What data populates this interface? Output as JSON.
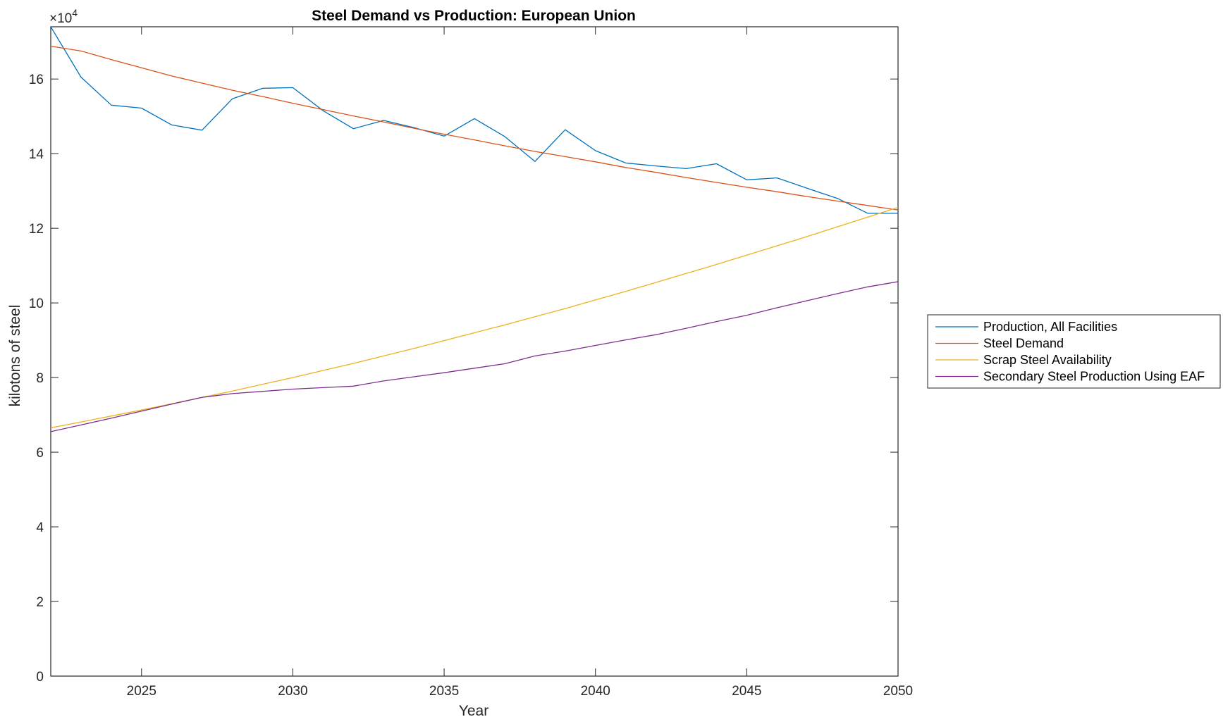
{
  "chart_data": {
    "type": "line",
    "title": "Steel Demand vs Production: European Union",
    "xlabel": "Year",
    "ylabel": "kilotons of steel",
    "y_exponent_label": "×10",
    "y_exponent_power": "4",
    "xlim": [
      2022,
      2050
    ],
    "ylim": [
      0,
      174000
    ],
    "xticks": [
      2025,
      2030,
      2035,
      2040,
      2045,
      2050
    ],
    "yticks": [
      0,
      20000,
      40000,
      60000,
      80000,
      100000,
      120000,
      140000,
      160000
    ],
    "ytick_labels": [
      "0",
      "2",
      "4",
      "6",
      "8",
      "10",
      "12",
      "14",
      "16"
    ],
    "grid": false,
    "legend_position": "outside-right",
    "x": [
      2022,
      2023,
      2024,
      2025,
      2026,
      2027,
      2028,
      2029,
      2030,
      2031,
      2032,
      2033,
      2034,
      2035,
      2036,
      2037,
      2038,
      2039,
      2040,
      2041,
      2042,
      2043,
      2044,
      2045,
      2046,
      2047,
      2048,
      2049,
      2050
    ],
    "series": [
      {
        "name": "Production, All Facilities",
        "color": "#0072BD",
        "values": [
          174000,
          160500,
          153000,
          152200,
          147700,
          146300,
          154700,
          157500,
          157700,
          151500,
          146700,
          148900,
          147000,
          144700,
          149400,
          144600,
          137900,
          146400,
          140800,
          137500,
          136700,
          136000,
          137300,
          133000,
          133500,
          130700,
          128000,
          124000,
          124000
        ]
      },
      {
        "name": "Steel Demand",
        "color": "#D95319",
        "values": [
          168800,
          167500,
          165200,
          163000,
          160800,
          158900,
          157000,
          155300,
          153500,
          151800,
          150100,
          148500,
          146800,
          145200,
          143700,
          142100,
          140600,
          139200,
          137800,
          136300,
          135000,
          133600,
          132300,
          131000,
          129800,
          128500,
          127300,
          126100,
          124900
        ]
      },
      {
        "name": "Scrap Steel Availability",
        "color": "#EDB120",
        "values": [
          66500,
          68100,
          69700,
          71300,
          73000,
          74700,
          76400,
          78200,
          80000,
          81900,
          83800,
          85800,
          87800,
          89900,
          92000,
          94100,
          96300,
          98500,
          100800,
          103100,
          105500,
          107900,
          110300,
          112800,
          115300,
          117800,
          120400,
          123000,
          125600
        ]
      },
      {
        "name": "Secondary Steel Production Using EAF",
        "color": "#7E2F8E",
        "values": [
          65500,
          67300,
          69100,
          71000,
          72900,
          74700,
          75700,
          76300,
          76900,
          77300,
          77700,
          79100,
          80200,
          81300,
          82500,
          83700,
          85800,
          87100,
          88600,
          90100,
          91500,
          93200,
          95000,
          96700,
          98700,
          100600,
          102500,
          104300,
          105700
        ]
      }
    ]
  }
}
